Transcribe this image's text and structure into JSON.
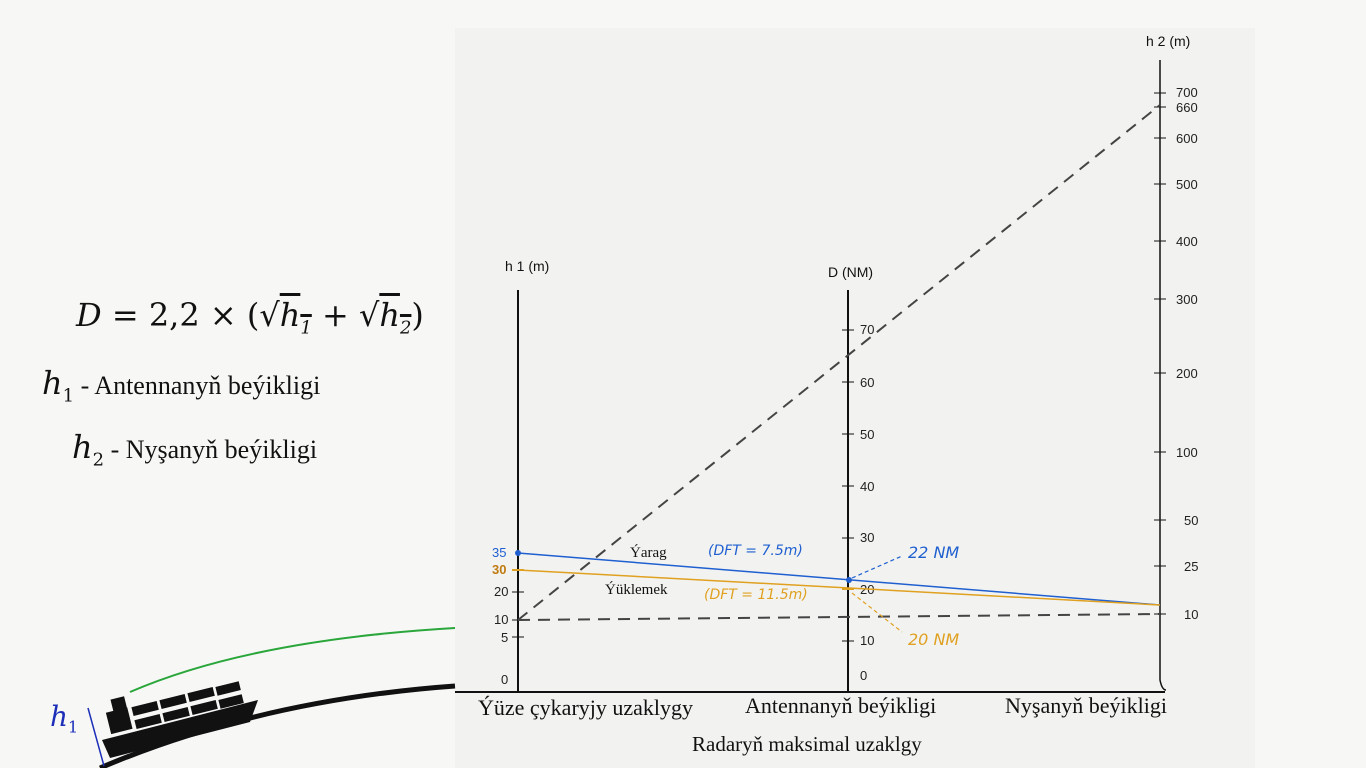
{
  "formula": {
    "D": "D",
    "eq": "= 2,2 × (",
    "h1": "h",
    "h1_sub": "1",
    "plus": "+",
    "h2": "h",
    "h2_sub": "2",
    "close": ")"
  },
  "legend": [
    {
      "symbol": "h",
      "sub": "1",
      "dash": " - ",
      "text": "Antennanyň beýikligi"
    },
    {
      "symbol": "h",
      "sub": "2",
      "dash": " - ",
      "text": "Nyşanyň beýikligi"
    }
  ],
  "axes": {
    "h1": {
      "title": "h 1 (m)",
      "ticks": [
        "35",
        "30",
        "20",
        "10",
        "5",
        "0"
      ]
    },
    "D": {
      "title": "D (NM)",
      "ticks": [
        "70",
        "60",
        "50",
        "40",
        "30",
        "20",
        "10",
        "0"
      ]
    },
    "h2": {
      "title": "h 2 (m)",
      "ticks": [
        "700",
        "660",
        "600",
        "500",
        "400",
        "300",
        "200",
        "100",
        "50",
        "25",
        "10"
      ]
    }
  },
  "lines": {
    "blue_label": "Ýarag",
    "orange_label": "Ýüklemek",
    "blue_note": "(DFT = 7.5m)",
    "orange_note": "(DFT = 11.5m)",
    "blue_result": "22 NM",
    "orange_result": "20 NM"
  },
  "bottom": {
    "left": "Ýüze çykaryjy uzaklygy",
    "mid": "Antennanyň beýikligi",
    "right": "Nyşanyň beýikligi",
    "caption": "Radaryň maksimal uzaklgy"
  },
  "ship": {
    "label": "h",
    "sub": "1"
  },
  "colors": {
    "blue": "#1f5fd0",
    "orange": "#e0a020",
    "green": "#2aa63a"
  }
}
